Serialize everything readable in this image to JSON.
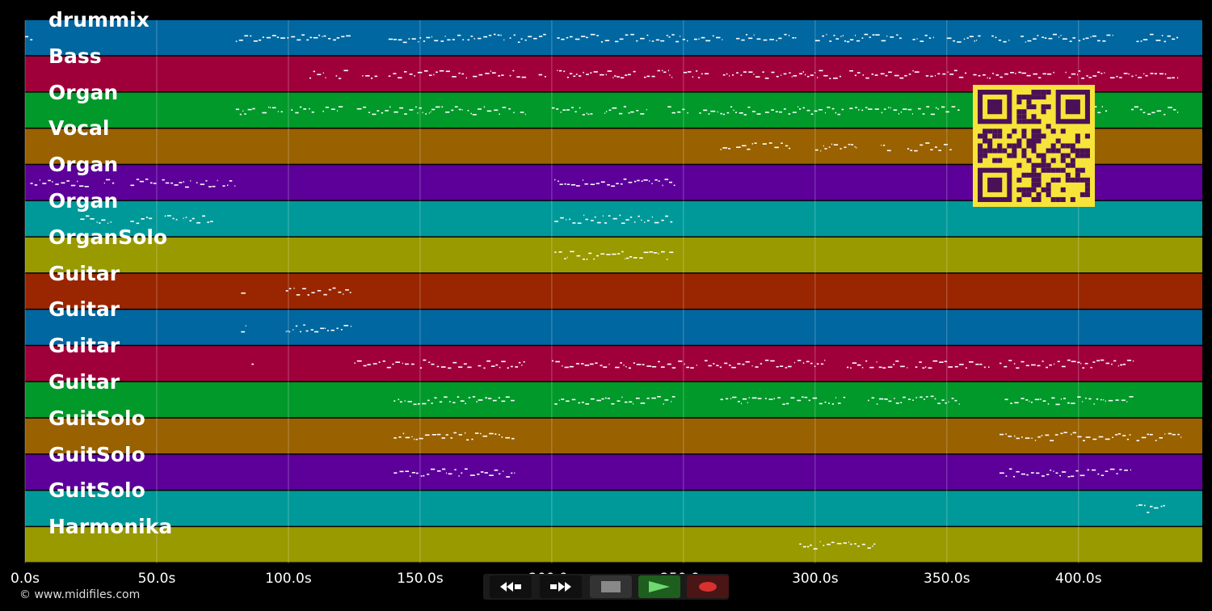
{
  "tracks": [
    {
      "label": "drummix",
      "color": "#0067a0"
    },
    {
      "label": "Bass",
      "color": "#a0003a"
    },
    {
      "label": "Organ",
      "color": "#00992a"
    },
    {
      "label": "Vocal",
      "color": "#996100"
    },
    {
      "label": "Organ",
      "color": "#5c0099"
    },
    {
      "label": "Organ",
      "color": "#009999"
    },
    {
      "label": "OrganSolo",
      "color": "#999900"
    },
    {
      "label": "Guitar",
      "color": "#992600"
    },
    {
      "label": "Guitar",
      "color": "#0067a0"
    },
    {
      "label": "Guitar",
      "color": "#a0003a"
    },
    {
      "label": "Guitar",
      "color": "#00992a"
    },
    {
      "label": "GuitSolo",
      "color": "#996100"
    },
    {
      "label": "GuitSolo",
      "color": "#5c0099"
    },
    {
      "label": "GuitSolo",
      "color": "#009999"
    },
    {
      "label": "Harmonika",
      "color": "#999900"
    }
  ],
  "time_axis": {
    "ticks": [
      {
        "value": 0,
        "label": "0.0s"
      },
      {
        "value": 50,
        "label": "50.0s"
      },
      {
        "value": 100,
        "label": "100.0s"
      },
      {
        "value": 150,
        "label": "150.0s"
      },
      {
        "value": 200,
        "label": "200.0s"
      },
      {
        "value": 250,
        "label": "250.0s"
      },
      {
        "value": 300,
        "label": "300.0s"
      },
      {
        "value": 350,
        "label": "350.0s"
      },
      {
        "value": 400,
        "label": "400.0s"
      }
    ],
    "max_seconds": 447
  },
  "copyright": "© www.midifiles.com",
  "transport": {
    "rewind_icon": "rewind-icon",
    "forward_icon": "fast-forward-icon",
    "stop_icon": "stop-icon",
    "play_icon": "play-icon",
    "record_icon": "record-icon"
  },
  "qr_icon": "qr-code-icon",
  "note_segments": [
    [
      [
        0,
        3
      ],
      [
        80,
        124
      ],
      [
        138,
        167
      ],
      [
        168,
        182
      ],
      [
        184,
        198
      ],
      [
        202,
        222
      ],
      [
        224,
        237
      ],
      [
        238,
        252
      ],
      [
        254,
        265
      ],
      [
        270,
        293
      ],
      [
        300,
        333
      ],
      [
        337,
        345
      ],
      [
        350,
        363
      ],
      [
        367,
        374
      ],
      [
        378,
        385
      ],
      [
        386,
        399
      ],
      [
        400,
        413
      ],
      [
        422,
        438
      ]
    ],
    [
      [
        108,
        114
      ],
      [
        118,
        123
      ],
      [
        128,
        134
      ],
      [
        138,
        168
      ],
      [
        170,
        182
      ],
      [
        184,
        191
      ],
      [
        195,
        198
      ],
      [
        202,
        232
      ],
      [
        235,
        246
      ],
      [
        250,
        260
      ],
      [
        265,
        310
      ],
      [
        313,
        340
      ],
      [
        342,
        358
      ],
      [
        360,
        391
      ],
      [
        395,
        410
      ],
      [
        412,
        438
      ]
    ],
    [
      [
        80,
        88
      ],
      [
        90,
        98
      ],
      [
        101,
        110
      ],
      [
        113,
        121
      ],
      [
        126,
        139
      ],
      [
        140,
        166
      ],
      [
        168,
        186
      ],
      [
        188,
        190
      ],
      [
        200,
        216
      ],
      [
        220,
        236
      ],
      [
        244,
        252
      ],
      [
        256,
        280
      ],
      [
        281,
        311
      ],
      [
        313,
        337
      ],
      [
        339,
        355
      ],
      [
        360,
        376
      ],
      [
        380,
        391
      ],
      [
        400,
        411
      ],
      [
        420,
        438
      ]
    ],
    [
      [
        264,
        268
      ],
      [
        270,
        278
      ],
      [
        280,
        291
      ],
      [
        300,
        316
      ],
      [
        325,
        329
      ],
      [
        335,
        352
      ]
    ],
    [
      [
        2,
        25
      ],
      [
        30,
        34
      ],
      [
        40,
        50
      ],
      [
        52,
        63
      ],
      [
        65,
        73
      ],
      [
        75,
        80
      ],
      [
        201,
        247
      ]
    ],
    [
      [
        21,
        33
      ],
      [
        40,
        49
      ],
      [
        53,
        58
      ],
      [
        60,
        72
      ],
      [
        201,
        246
      ]
    ],
    [
      [
        201,
        247
      ]
    ],
    [
      [
        82,
        84
      ],
      [
        99,
        124
      ]
    ],
    [
      [
        82,
        84
      ],
      [
        99,
        124
      ]
    ],
    [
      [
        86,
        87
      ],
      [
        125,
        148
      ],
      [
        150,
        170
      ],
      [
        172,
        190
      ],
      [
        200,
        222
      ],
      [
        224,
        255
      ],
      [
        258,
        280
      ],
      [
        281,
        304
      ],
      [
        312,
        335
      ],
      [
        338,
        367
      ],
      [
        370,
        391
      ],
      [
        392,
        421
      ]
    ],
    [
      [
        140,
        186
      ],
      [
        201,
        247
      ],
      [
        264,
        280
      ],
      [
        281,
        312
      ],
      [
        320,
        355
      ],
      [
        372,
        421
      ]
    ],
    [
      [
        140,
        186
      ],
      [
        370,
        396
      ],
      [
        397,
        420
      ],
      [
        422,
        433
      ],
      [
        434,
        439
      ]
    ],
    [
      [
        140,
        186
      ],
      [
        370,
        420
      ]
    ],
    [
      [
        422,
        433
      ]
    ],
    [
      [
        294,
        323
      ]
    ]
  ]
}
